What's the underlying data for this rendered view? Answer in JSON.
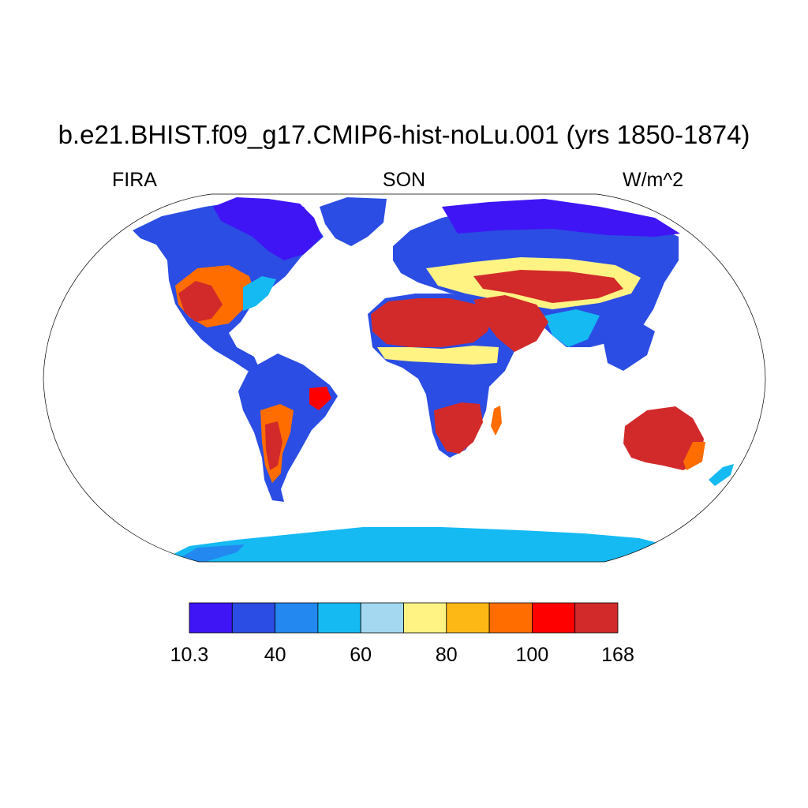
{
  "title": "b.e21.BHIST.f09_g17.CMIP6-hist-noLu.001 (yrs 1850-1874)",
  "left_label": "FIRA",
  "center_label": "SON",
  "right_label": "W/m^2",
  "map": {
    "projection": "Robinson",
    "variable": "FIRA",
    "season": "SON",
    "units": "W/m^2",
    "land_only": true
  },
  "colorbar": {
    "colors": [
      "#3f15f5",
      "#2b4de3",
      "#2388f0",
      "#16baf2",
      "#a3d8f0",
      "#fff384",
      "#feb816",
      "#ff6d00",
      "#ff0000",
      "#d22a2a"
    ],
    "tick_labels": [
      "10.3",
      "40",
      "60",
      "80",
      "100",
      "168"
    ]
  }
}
